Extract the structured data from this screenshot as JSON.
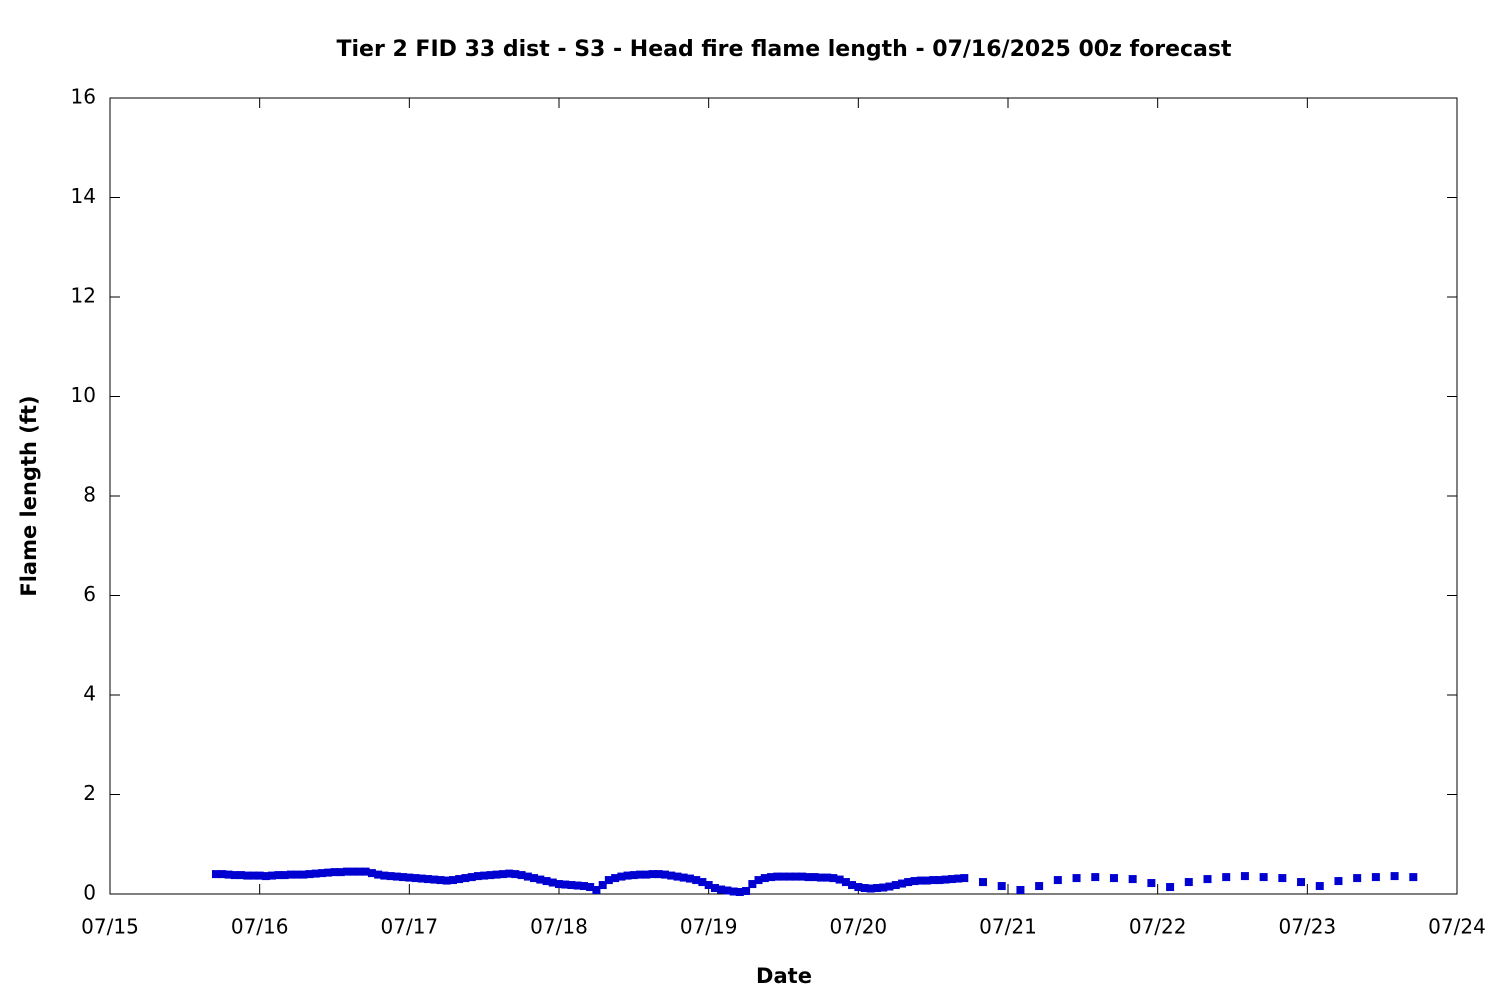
{
  "chart_data": {
    "type": "scatter",
    "title": "Tier 2 FID 33 dist - S3 - Head fire flame length - 07/16/2025 00z forecast",
    "x_label": "Date",
    "y_label": "Flame length (ft)",
    "marker": "square",
    "series": [
      {
        "color": "#0000d0",
        "x": [
          15.708,
          15.75,
          15.792,
          15.833,
          15.875,
          15.917,
          15.958,
          16.0,
          16.042,
          16.083,
          16.125,
          16.167,
          16.208,
          16.25,
          16.292,
          16.333,
          16.375,
          16.417,
          16.458,
          16.5,
          16.542,
          16.583,
          16.625,
          16.667,
          16.708,
          16.75,
          16.792,
          16.833,
          16.875,
          16.917,
          16.958,
          17.0,
          17.042,
          17.083,
          17.125,
          17.167,
          17.208,
          17.25,
          17.292,
          17.333,
          17.375,
          17.417,
          17.458,
          17.5,
          17.542,
          17.583,
          17.625,
          17.667,
          17.708,
          17.75,
          17.792,
          17.833,
          17.875,
          17.917,
          17.958,
          18.0,
          18.042,
          18.083,
          18.125,
          18.167,
          18.208,
          18.25,
          18.292,
          18.333,
          18.375,
          18.417,
          18.458,
          18.5,
          18.542,
          18.583,
          18.625,
          18.667,
          18.708,
          18.75,
          18.792,
          18.833,
          18.875,
          18.917,
          18.958,
          19.0,
          19.042,
          19.083,
          19.125,
          19.167,
          19.208,
          19.25,
          19.292,
          19.333,
          19.375,
          19.417,
          19.458,
          19.5,
          19.542,
          19.583,
          19.625,
          19.667,
          19.708,
          19.75,
          19.792,
          19.833,
          19.875,
          19.917,
          19.958,
          20.0,
          20.042,
          20.083,
          20.125,
          20.167,
          20.208,
          20.25,
          20.292,
          20.333,
          20.375,
          20.417,
          20.458,
          20.5,
          20.542,
          20.583,
          20.625,
          20.667,
          20.708,
          20.833,
          20.958,
          21.083,
          21.208,
          21.333,
          21.458,
          21.583,
          21.708,
          21.833,
          21.958,
          22.083,
          22.208,
          22.333,
          22.458,
          22.583,
          22.708,
          22.833,
          22.958,
          23.083,
          23.208,
          23.333,
          23.458,
          23.583,
          23.708
        ],
        "values": [
          0.4,
          0.4,
          0.39,
          0.38,
          0.38,
          0.37,
          0.37,
          0.37,
          0.36,
          0.37,
          0.38,
          0.38,
          0.39,
          0.39,
          0.39,
          0.4,
          0.41,
          0.42,
          0.43,
          0.44,
          0.44,
          0.45,
          0.45,
          0.45,
          0.45,
          0.42,
          0.39,
          0.37,
          0.36,
          0.35,
          0.34,
          0.33,
          0.32,
          0.31,
          0.3,
          0.29,
          0.28,
          0.27,
          0.28,
          0.3,
          0.32,
          0.34,
          0.36,
          0.37,
          0.38,
          0.39,
          0.4,
          0.41,
          0.4,
          0.38,
          0.35,
          0.32,
          0.29,
          0.26,
          0.23,
          0.2,
          0.19,
          0.18,
          0.17,
          0.16,
          0.14,
          0.08,
          0.18,
          0.28,
          0.32,
          0.35,
          0.37,
          0.38,
          0.39,
          0.39,
          0.4,
          0.4,
          0.39,
          0.37,
          0.35,
          0.33,
          0.31,
          0.28,
          0.24,
          0.18,
          0.12,
          0.09,
          0.07,
          0.05,
          0.04,
          0.06,
          0.2,
          0.28,
          0.32,
          0.34,
          0.35,
          0.35,
          0.35,
          0.35,
          0.35,
          0.34,
          0.34,
          0.33,
          0.33,
          0.32,
          0.29,
          0.24,
          0.18,
          0.14,
          0.12,
          0.11,
          0.12,
          0.13,
          0.15,
          0.18,
          0.21,
          0.24,
          0.26,
          0.27,
          0.27,
          0.28,
          0.28,
          0.29,
          0.3,
          0.31,
          0.32,
          0.24,
          0.16,
          0.08,
          0.16,
          0.28,
          0.32,
          0.34,
          0.32,
          0.3,
          0.22,
          0.14,
          0.24,
          0.3,
          0.34,
          0.36,
          0.34,
          0.32,
          0.24,
          0.16,
          0.26,
          0.32,
          0.34,
          0.36,
          0.34
        ]
      }
    ],
    "xlim": [
      15,
      24
    ],
    "xticks": [
      {
        "value": 15,
        "label": "07/15"
      },
      {
        "value": 16,
        "label": "07/16"
      },
      {
        "value": 17,
        "label": "07/17"
      },
      {
        "value": 18,
        "label": "07/18"
      },
      {
        "value": 19,
        "label": "07/19"
      },
      {
        "value": 20,
        "label": "07/20"
      },
      {
        "value": 21,
        "label": "07/21"
      },
      {
        "value": 22,
        "label": "07/22"
      },
      {
        "value": 23,
        "label": "07/23"
      },
      {
        "value": 24,
        "label": "07/24"
      }
    ],
    "ylim": [
      0,
      16
    ],
    "yticks": [
      0,
      2,
      4,
      6,
      8,
      10,
      12,
      14,
      16
    ],
    "grid": false
  }
}
